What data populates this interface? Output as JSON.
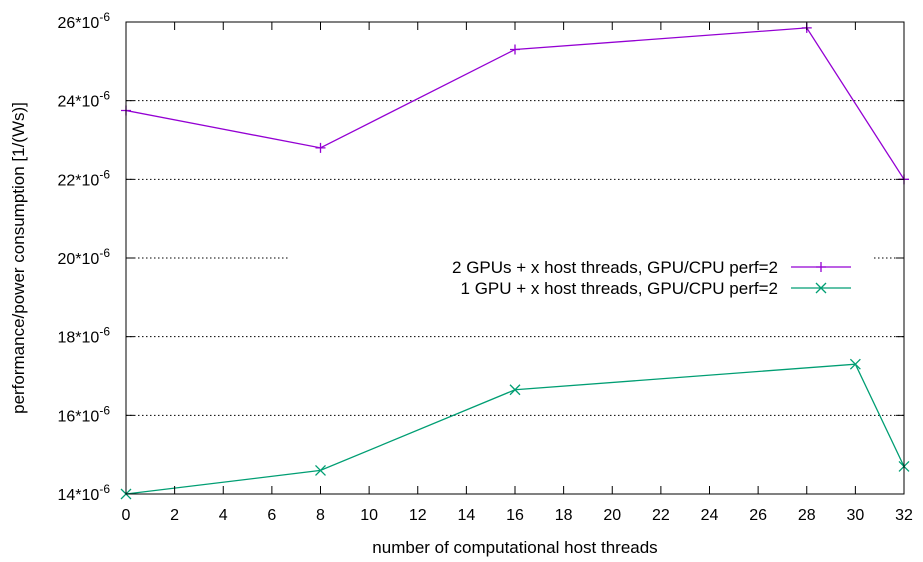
{
  "chart_data": {
    "type": "line",
    "title": "",
    "xlabel": "number of computational host threads",
    "ylabel": "performance/power consumption [1/(Ws)]",
    "xlim": [
      0,
      32
    ],
    "ylim": [
      14,
      26
    ],
    "x_ticks": [
      0,
      2,
      4,
      6,
      8,
      10,
      12,
      14,
      16,
      18,
      20,
      22,
      24,
      26,
      28,
      30,
      32
    ],
    "x_tick_labels": [
      "0",
      "2",
      "4",
      "6",
      "8",
      "10",
      "12",
      "14",
      "16",
      "18",
      "20",
      "22",
      "24",
      "26",
      "28",
      "30",
      "32"
    ],
    "y_ticks": [
      14,
      16,
      18,
      20,
      22,
      24,
      26
    ],
    "y_tick_labels": [
      "14*10",
      "16*10",
      "18*10",
      "20*10",
      "22*10",
      "24*10",
      "26*10"
    ],
    "y_tick_exponent": "-6",
    "grid": "horizontal dotted",
    "legend_position": "center-right",
    "series": [
      {
        "name": "2 GPUs + x host threads, GPU/CPU perf=2",
        "color": "#9400d3",
        "marker": "plus",
        "x": [
          0,
          8,
          16,
          28,
          32
        ],
        "y": [
          23.75,
          22.8,
          25.3,
          25.85,
          22.0
        ]
      },
      {
        "name": "1 GPU + x host threads, GPU/CPU perf=2",
        "color": "#009e73",
        "marker": "cross",
        "x": [
          0,
          8,
          16,
          30,
          32
        ],
        "y": [
          14.0,
          14.6,
          16.65,
          17.3,
          14.7
        ]
      }
    ]
  }
}
